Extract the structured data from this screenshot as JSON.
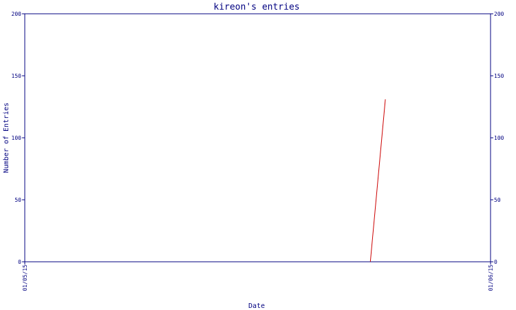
{
  "chart_data": {
    "type": "line",
    "title": "kireon's entries",
    "xlabel": "Date",
    "ylabel": "Number of Entries",
    "x_tick_labels": [
      "01/05/15",
      "01/06/15"
    ],
    "y_ticks": [
      0,
      50,
      100,
      150,
      200
    ],
    "ylim": [
      0,
      200
    ],
    "grid": false,
    "series": [
      {
        "color": "#cc0000",
        "points": [
          {
            "x": "2015-05-24",
            "y": 0
          },
          {
            "x": "2015-05-25",
            "y": 131
          }
        ]
      }
    ],
    "xlim": [
      "2015-05-01",
      "2015-06-01"
    ],
    "colors": {
      "axis": "#000080",
      "text": "#000080",
      "line": "#cc0000"
    }
  }
}
